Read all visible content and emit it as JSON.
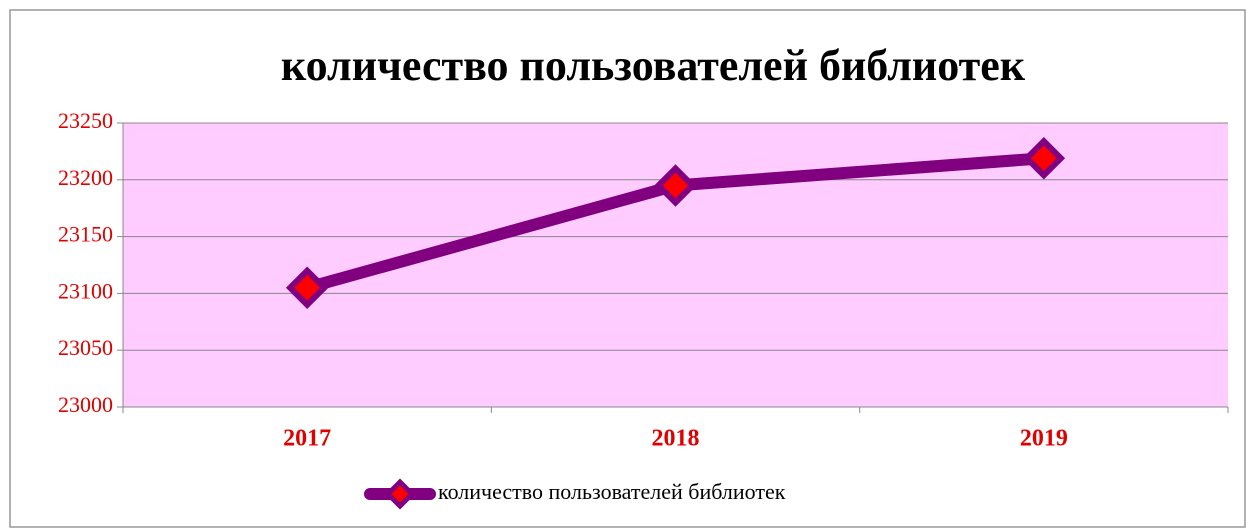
{
  "chart_data": {
    "type": "line",
    "title": "количество пользователей библиотек",
    "categories": [
      "2017",
      "2018",
      "2019"
    ],
    "series": [
      {
        "name": "количество пользователей библиотек",
        "color": "#800080",
        "marker_color": "#ff0000",
        "values": [
          23105,
          23195,
          23219
        ]
      }
    ],
    "ylim": [
      23000,
      23250
    ],
    "yticks": [
      23000,
      23050,
      23100,
      23150,
      23200,
      23250
    ],
    "grid": true,
    "legend": "bottom",
    "plot_background": "#ffccff",
    "tick_label_color": "#e00000"
  }
}
